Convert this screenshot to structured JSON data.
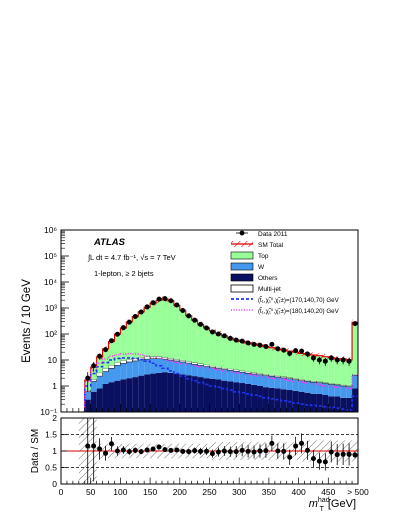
{
  "chart_data": [
    {
      "type": "histogram",
      "experiment": "ATLAS",
      "lumi_text": "∫L dt = 4.7 fb⁻¹, √s = 7 TeV",
      "selection": "1-lepton, ≥ 2 bjets",
      "ylabel": "Events / 10 GeV",
      "yscale": "log",
      "ylim": [
        0.1,
        1000000
      ],
      "yticks": [
        "10⁻¹",
        "1",
        "10",
        "10²",
        "10³",
        "10⁴",
        "10⁵",
        "10⁶"
      ],
      "xlim": [
        0,
        500
      ],
      "bin_width": 10,
      "legend_position": "top-right",
      "legend": {
        "data": "Data 2011",
        "sm_total": "SM Total",
        "top": "Top",
        "w": "W",
        "others": "Others",
        "multijet": "Multi-jet",
        "sig1": "(t̃₁,χ̃₁⁰,χ̃₁±)=(170,140,70) GeV",
        "sig2": "(t̃₁,χ̃₁⁰,χ̃₁±)=(180,140,20) GeV"
      },
      "bin_centers": [
        5,
        15,
        25,
        35,
        45,
        55,
        65,
        75,
        85,
        95,
        105,
        115,
        125,
        135,
        145,
        155,
        165,
        175,
        185,
        195,
        205,
        215,
        225,
        235,
        245,
        255,
        265,
        275,
        285,
        295,
        305,
        315,
        325,
        335,
        345,
        355,
        365,
        375,
        385,
        395,
        405,
        415,
        425,
        435,
        445,
        455,
        465,
        475,
        485,
        495
      ],
      "series": [
        {
          "key": "others",
          "values": [
            0,
            0,
            0,
            0,
            0.3,
            0.6,
            0.8,
            1.2,
            1.4,
            1.6,
            1.8,
            2.0,
            2.2,
            2.5,
            2.8,
            3.0,
            3.2,
            3.4,
            3.2,
            3.0,
            2.8,
            2.6,
            2.4,
            2.2,
            2.0,
            1.9,
            1.8,
            1.6,
            1.5,
            1.4,
            1.3,
            1.2,
            1.1,
            1.0,
            0.9,
            0.85,
            0.8,
            0.75,
            0.7,
            0.65,
            0.6,
            0.55,
            0.5,
            0.5,
            0.45,
            0.4,
            0.4,
            0.35,
            0.35,
            0.8
          ]
        },
        {
          "key": "w",
          "values": [
            0,
            0,
            0,
            0,
            0.3,
            0.9,
            1.6,
            2.4,
            3.4,
            4.6,
            5.6,
            6.4,
            7.0,
            7.6,
            8.0,
            8.2,
            8.0,
            7.4,
            6.8,
            6.2,
            5.6,
            5.0,
            4.4,
            4.0,
            3.6,
            3.2,
            2.9,
            2.7,
            2.5,
            2.3,
            2.1,
            1.9,
            1.8,
            1.7,
            1.6,
            1.5,
            1.4,
            1.3,
            1.2,
            1.1,
            1.0,
            0.95,
            0.9,
            0.85,
            0.8,
            0.75,
            0.7,
            0.65,
            0.6,
            1.8
          ]
        },
        {
          "key": "multijet",
          "values": [
            0,
            0,
            0,
            0,
            0.1,
            0.3,
            0.8,
            1.2,
            1.6,
            2.0,
            2.2,
            2.4,
            2.6,
            2.6,
            2.5,
            2.4,
            2.2,
            2.0,
            1.8,
            1.6,
            1.4,
            1.2,
            1.1,
            1.0,
            0.9,
            0.8,
            0.7,
            0.6,
            0.55,
            0.5,
            0.45,
            0.4,
            0.4,
            0.35,
            0.3,
            0.3,
            0.25,
            0.25,
            0.2,
            0.2,
            0.2,
            0.15,
            0.15,
            0.15,
            0.1,
            0.1,
            0.1,
            0.1,
            0.1,
            0.3
          ]
        },
        {
          "key": "top",
          "values": [
            0,
            0,
            0.05,
            0.1,
            1.0,
            3.5,
            10,
            22,
            45,
            90,
            160,
            280,
            450,
            700,
            1050,
            1500,
            1950,
            2200,
            1850,
            1250,
            800,
            500,
            330,
            230,
            165,
            125,
            98,
            80,
            65,
            55,
            48,
            42,
            38,
            34,
            30,
            27,
            24,
            22,
            20,
            18,
            16,
            15,
            14,
            13,
            12,
            11,
            10,
            10,
            9,
            280
          ]
        }
      ],
      "sm_total": [
        0,
        0,
        0.05,
        0.1,
        1.7,
        5.3,
        13.2,
        26.8,
        51.4,
        98.2,
        169.6,
        290.8,
        461.8,
        712.7,
        1063.3,
        1513.6,
        1963.4,
        2212.8,
        1861.8,
        1260.8,
        809.8,
        508.8,
        338.0,
        237.2,
        171.5,
        130.9,
        103.4,
        84.9,
        69.6,
        59.2,
        51.9,
        45.5,
        41.3,
        37.0,
        32.8,
        29.7,
        26.5,
        24.3,
        22.1,
        19.95,
        17.8,
        16.7,
        15.6,
        14.6,
        13.4,
        12.3,
        11.2,
        11.1,
        10.05,
        282.9
      ],
      "data_points": {
        "x": [
          45,
          55,
          65,
          75,
          85,
          95,
          105,
          115,
          125,
          135,
          145,
          155,
          165,
          175,
          185,
          195,
          205,
          215,
          225,
          235,
          245,
          255,
          265,
          275,
          285,
          295,
          305,
          315,
          325,
          335,
          345,
          355,
          365,
          375,
          385,
          395,
          405,
          415,
          425,
          435,
          445,
          455,
          465,
          475,
          485,
          495
        ],
        "y": [
          2,
          6,
          14,
          25,
          55,
          98,
          175,
          285,
          470,
          700,
          1100,
          1600,
          2200,
          2300,
          1900,
          1300,
          800,
          500,
          340,
          235,
          170,
          120,
          100,
          85,
          68,
          58,
          53,
          45,
          40,
          37,
          33,
          40,
          27,
          24,
          18,
          23,
          22,
          17,
          12,
          10,
          9,
          12,
          10,
          10,
          9,
          250
        ]
      },
      "signals": [
        {
          "key": "sig1",
          "values": [
            0,
            0,
            0,
            0,
            1.0,
            3.0,
            5.5,
            8.0,
            10.0,
            11.5,
            12.0,
            12.0,
            11.5,
            10.5,
            9.0,
            7.5,
            6.0,
            4.8,
            3.8,
            3.0,
            2.4,
            1.9,
            1.6,
            1.35,
            1.15,
            1.0,
            0.9,
            0.8,
            0.7,
            0.6,
            0.55,
            0.5,
            0.45,
            0.4,
            0.35,
            0.32,
            0.3,
            0.27,
            0.25,
            0.22,
            0.2,
            0.19,
            0.18,
            0.17,
            0.16,
            0.15,
            0.14,
            0.13,
            0.12,
            0.4
          ]
        },
        {
          "key": "sig2",
          "values": [
            0,
            0,
            0,
            0,
            1.5,
            4.0,
            7.5,
            11.0,
            14.0,
            16.0,
            17.0,
            17.5,
            17.0,
            16.0,
            14.5,
            13.0,
            11.5,
            10.0,
            9.0,
            8.0,
            7.2,
            6.5,
            6.0,
            5.5,
            5.0,
            4.6,
            4.2,
            3.8,
            3.5,
            3.2,
            3.0,
            2.8,
            2.6,
            2.4,
            2.2,
            2.0,
            1.9,
            1.8,
            1.6,
            1.5,
            1.4,
            1.3,
            1.2,
            1.1,
            1.0,
            0.95,
            0.9,
            0.85,
            0.8,
            2.5
          ]
        }
      ]
    },
    {
      "type": "ratio",
      "ylabel": "Data / SM",
      "ylim": [
        0,
        2
      ],
      "yticks": [
        "0",
        "0.5",
        "1",
        "1.5",
        "2"
      ],
      "xlim": [
        0,
        500
      ],
      "xticks": [
        "0",
        "50",
        "100",
        "150",
        "200",
        "250",
        "300",
        "350",
        "400",
        "450",
        "> 500"
      ],
      "xlabel": "m",
      "xlabel_sub": "T",
      "xlabel_sup": "had",
      "xlabel_unit": "[GeV]",
      "x": [
        45,
        55,
        65,
        75,
        85,
        95,
        105,
        115,
        125,
        135,
        145,
        155,
        165,
        175,
        185,
        195,
        205,
        215,
        225,
        235,
        245,
        255,
        265,
        275,
        285,
        295,
        305,
        315,
        325,
        335,
        345,
        355,
        365,
        375,
        385,
        395,
        405,
        415,
        425,
        435,
        445,
        455,
        465,
        475,
        485,
        495
      ],
      "y": [
        1.15,
        1.15,
        1.06,
        0.93,
        1.22,
        1.0,
        1.03,
        0.98,
        1.02,
        0.98,
        1.03,
        1.06,
        1.12,
        1.04,
        1.02,
        1.03,
        0.99,
        0.98,
        1.01,
        0.99,
        0.99,
        0.92,
        0.97,
        1.0,
        0.98,
        0.98,
        1.02,
        0.99,
        0.97,
        1.0,
        1.01,
        1.23,
        1.0,
        0.99,
        0.81,
        1.15,
        1.23,
        1.02,
        0.77,
        0.69,
        0.67,
        0.97,
        0.89,
        0.9,
        0.9,
        0.88
      ]
    }
  ],
  "colors": {
    "top": "#99ff99",
    "w": "#4499ee",
    "others": "#0a1060",
    "multijet": "#ffffff",
    "sm_total": "#dd0000",
    "sig1": "#2233ee",
    "sig2": "#ee33ee",
    "data": "#000000"
  }
}
